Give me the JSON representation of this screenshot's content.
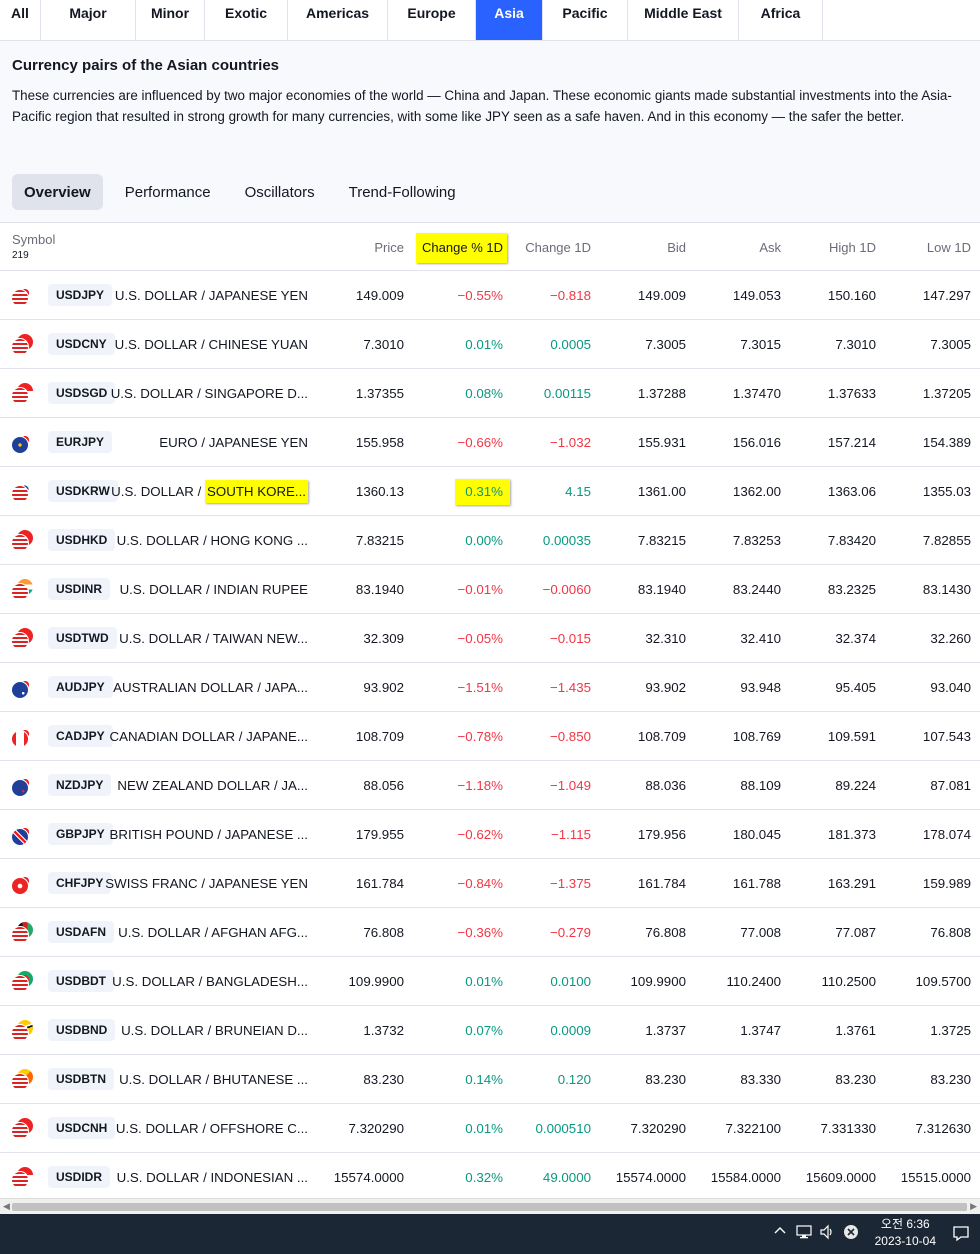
{
  "region_tabs": [
    {
      "label": "All",
      "active": false
    },
    {
      "label": "Major",
      "active": false
    },
    {
      "label": "Minor",
      "active": false
    },
    {
      "label": "Exotic",
      "active": false
    },
    {
      "label": "Americas",
      "active": false
    },
    {
      "label": "Europe",
      "active": false
    },
    {
      "label": "Asia",
      "active": true
    },
    {
      "label": "Pacific",
      "active": false
    },
    {
      "label": "Middle East",
      "active": false
    },
    {
      "label": "Africa",
      "active": false
    }
  ],
  "description": {
    "title": "Currency pairs of the Asian countries",
    "text": "These currencies are influenced by two major economies of the world — China and Japan. These economic giants made substantial investments into the Asia-Pacific region that resulted in strong growth for many currencies, with some like JPY seen as a safe haven. And in this economy — the safer the better."
  },
  "view_tabs": [
    {
      "label": "Overview",
      "active": true
    },
    {
      "label": "Performance",
      "active": false
    },
    {
      "label": "Oscillators",
      "active": false
    },
    {
      "label": "Trend-Following",
      "active": false
    }
  ],
  "table": {
    "symbol_header": "Symbol",
    "symbol_count": "219",
    "columns": [
      "Price",
      "Change % 1D",
      "Change 1D",
      "Bid",
      "Ask",
      "High 1D",
      "Low 1D"
    ],
    "rows": [
      {
        "symbol": "USDJPY",
        "name": "U.S. DOLLAR / JAPANESE YEN",
        "price": "149.009",
        "chg_pct": "−0.55%",
        "chg": "−0.818",
        "bid": "149.009",
        "ask": "149.053",
        "high": "150.160",
        "low": "147.297",
        "dir": "neg",
        "flag1": "us",
        "flag2": "jp"
      },
      {
        "symbol": "USDCNY",
        "name": "U.S. DOLLAR / CHINESE YUAN",
        "price": "7.3010",
        "chg_pct": "0.01%",
        "chg": "0.0005",
        "bid": "7.3005",
        "ask": "7.3015",
        "high": "7.3010",
        "low": "7.3005",
        "dir": "pos",
        "flag1": "us",
        "flag2": "cn"
      },
      {
        "symbol": "USDSGD",
        "name": "U.S. DOLLAR / SINGAPORE D...",
        "price": "1.37355",
        "chg_pct": "0.08%",
        "chg": "0.00115",
        "bid": "1.37288",
        "ask": "1.37470",
        "high": "1.37633",
        "low": "1.37205",
        "dir": "pos",
        "flag1": "us",
        "flag2": "sg"
      },
      {
        "symbol": "EURJPY",
        "name": "EURO / JAPANESE YEN",
        "price": "155.958",
        "chg_pct": "−0.66%",
        "chg": "−1.032",
        "bid": "155.931",
        "ask": "156.016",
        "high": "157.214",
        "low": "154.389",
        "dir": "neg",
        "flag1": "eu",
        "flag2": "jp"
      },
      {
        "symbol": "USDKRW",
        "name_a": "U.S. DOLLAR / ",
        "name_b": "SOUTH KORE...",
        "price": "1360.13",
        "chg_pct": "0.31%",
        "chg": "4.15",
        "bid": "1361.00",
        "ask": "1362.00",
        "high": "1363.06",
        "low": "1355.03",
        "dir": "pos",
        "flag1": "us",
        "flag2": "kr"
      },
      {
        "symbol": "USDHKD",
        "name": "U.S. DOLLAR / HONG KONG ...",
        "price": "7.83215",
        "chg_pct": "0.00%",
        "chg": "0.00035",
        "bid": "7.83215",
        "ask": "7.83253",
        "high": "7.83420",
        "low": "7.82855",
        "dir": "pos",
        "flag1": "us",
        "flag2": "hk"
      },
      {
        "symbol": "USDINR",
        "name": "U.S. DOLLAR / INDIAN RUPEE",
        "price": "83.1940",
        "chg_pct": "−0.01%",
        "chg": "−0.0060",
        "bid": "83.1940",
        "ask": "83.2440",
        "high": "83.2325",
        "low": "83.1430",
        "dir": "neg",
        "flag1": "us",
        "flag2": "in"
      },
      {
        "symbol": "USDTWD",
        "name": "U.S. DOLLAR / TAIWAN NEW...",
        "price": "32.309",
        "chg_pct": "−0.05%",
        "chg": "−0.015",
        "bid": "32.310",
        "ask": "32.410",
        "high": "32.374",
        "low": "32.260",
        "dir": "neg",
        "flag1": "us",
        "flag2": "tw"
      },
      {
        "symbol": "AUDJPY",
        "name": "AUSTRALIAN DOLLAR / JAPA...",
        "price": "93.902",
        "chg_pct": "−1.51%",
        "chg": "−1.435",
        "bid": "93.902",
        "ask": "93.948",
        "high": "95.405",
        "low": "93.040",
        "dir": "neg",
        "flag1": "au",
        "flag2": "jp"
      },
      {
        "symbol": "CADJPY",
        "name": "CANADIAN DOLLAR / JAPANE...",
        "price": "108.709",
        "chg_pct": "−0.78%",
        "chg": "−0.850",
        "bid": "108.709",
        "ask": "108.769",
        "high": "109.591",
        "low": "107.543",
        "dir": "neg",
        "flag1": "ca",
        "flag2": "jp"
      },
      {
        "symbol": "NZDJPY",
        "name": "NEW ZEALAND DOLLAR / JA...",
        "price": "88.056",
        "chg_pct": "−1.18%",
        "chg": "−1.049",
        "bid": "88.036",
        "ask": "88.109",
        "high": "89.224",
        "low": "87.081",
        "dir": "neg",
        "flag1": "nz",
        "flag2": "jp"
      },
      {
        "symbol": "GBPJPY",
        "name": "BRITISH POUND / JAPANESE ...",
        "price": "179.955",
        "chg_pct": "−0.62%",
        "chg": "−1.115",
        "bid": "179.956",
        "ask": "180.045",
        "high": "181.373",
        "low": "178.074",
        "dir": "neg",
        "flag1": "gb",
        "flag2": "jp"
      },
      {
        "symbol": "CHFJPY",
        "name": "SWISS FRANC / JAPANESE YEN",
        "price": "161.784",
        "chg_pct": "−0.84%",
        "chg": "−1.375",
        "bid": "161.784",
        "ask": "161.788",
        "high": "163.291",
        "low": "159.989",
        "dir": "neg",
        "flag1": "ch",
        "flag2": "jp"
      },
      {
        "symbol": "USDAFN",
        "name": "U.S. DOLLAR / AFGHAN AFG...",
        "price": "76.808",
        "chg_pct": "−0.36%",
        "chg": "−0.279",
        "bid": "76.808",
        "ask": "77.008",
        "high": "77.087",
        "low": "76.808",
        "dir": "neg",
        "flag1": "us",
        "flag2": "af"
      },
      {
        "symbol": "USDBDT",
        "name": "U.S. DOLLAR / BANGLADESH...",
        "price": "109.9900",
        "chg_pct": "0.01%",
        "chg": "0.0100",
        "bid": "109.9900",
        "ask": "110.2400",
        "high": "110.2500",
        "low": "109.5700",
        "dir": "pos",
        "flag1": "us",
        "flag2": "bd"
      },
      {
        "symbol": "USDBND",
        "name": "U.S. DOLLAR / BRUNEIAN D...",
        "price": "1.3732",
        "chg_pct": "0.07%",
        "chg": "0.0009",
        "bid": "1.3737",
        "ask": "1.3747",
        "high": "1.3761",
        "low": "1.3725",
        "dir": "pos",
        "flag1": "us",
        "flag2": "bn"
      },
      {
        "symbol": "USDBTN",
        "name": "U.S. DOLLAR / BHUTANESE ...",
        "price": "83.230",
        "chg_pct": "0.14%",
        "chg": "0.120",
        "bid": "83.230",
        "ask": "83.330",
        "high": "83.230",
        "low": "83.230",
        "dir": "pos",
        "flag1": "us",
        "flag2": "bt"
      },
      {
        "symbol": "USDCNH",
        "name": "U.S. DOLLAR / OFFSHORE C...",
        "price": "7.320290",
        "chg_pct": "0.01%",
        "chg": "0.000510",
        "bid": "7.320290",
        "ask": "7.322100",
        "high": "7.331330",
        "low": "7.312630",
        "dir": "pos",
        "flag1": "us",
        "flag2": "cn"
      },
      {
        "symbol": "USDIDR",
        "name": "U.S. DOLLAR / INDONESIAN ...",
        "price": "15574.0000",
        "chg_pct": "0.32%",
        "chg": "49.0000",
        "bid": "15574.0000",
        "ask": "15584.0000",
        "high": "15609.0000",
        "low": "15515.0000",
        "dir": "pos",
        "flag1": "us",
        "flag2": "id"
      }
    ]
  },
  "taskbar": {
    "time": "오전 6:36",
    "date": "2023-10-04"
  },
  "icons": [
    "chevron-up-icon",
    "network-icon",
    "volume-icon",
    "close-circle-icon",
    "notification-icon",
    "scroll-left-icon",
    "scroll-right-icon"
  ],
  "colors": {
    "accent": "#2962ff",
    "positive": "#089981",
    "negative": "#f23645",
    "highlight": "#ffff00"
  }
}
